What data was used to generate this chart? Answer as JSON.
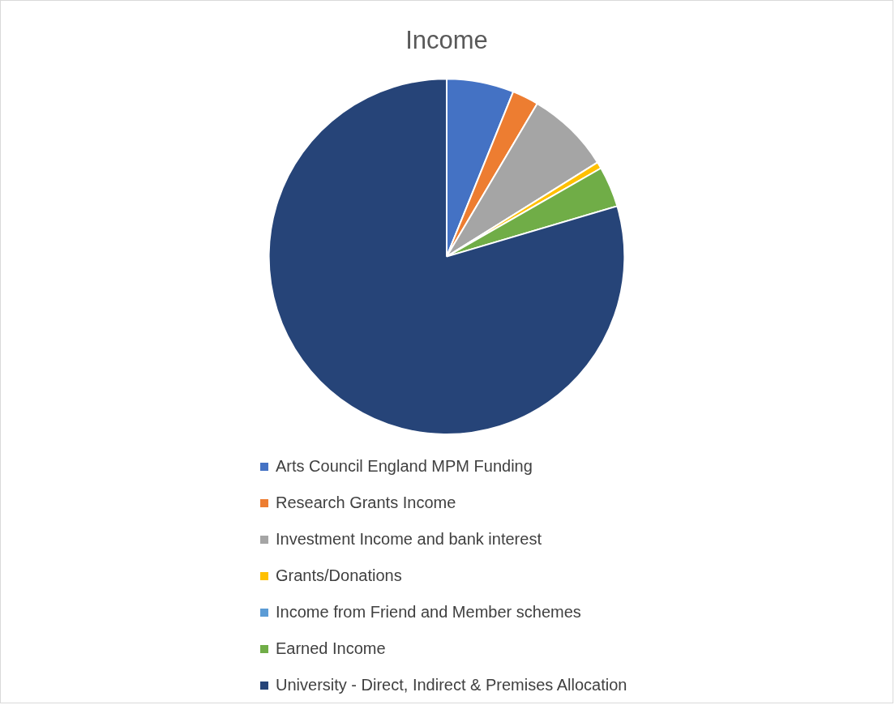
{
  "chart_data": {
    "type": "pie",
    "title": "Income",
    "categories": [
      "Arts Council England MPM Funding",
      "Research Grants Income",
      "Investment Income and bank interest",
      "Grants/Donations",
      "Income from Friend and Member schemes",
      "Earned Income",
      "University - Direct, Indirect & Premises Allocation"
    ],
    "values": [
      6.1,
      2.4,
      7.6,
      0.6,
      null,
      3.7,
      79.5
    ],
    "colors": [
      "#4472c4",
      "#ed7d31",
      "#a5a5a5",
      "#ffc000",
      "#5b9bd5",
      "#70ad47",
      "#264478"
    ],
    "legend": "bottom"
  }
}
